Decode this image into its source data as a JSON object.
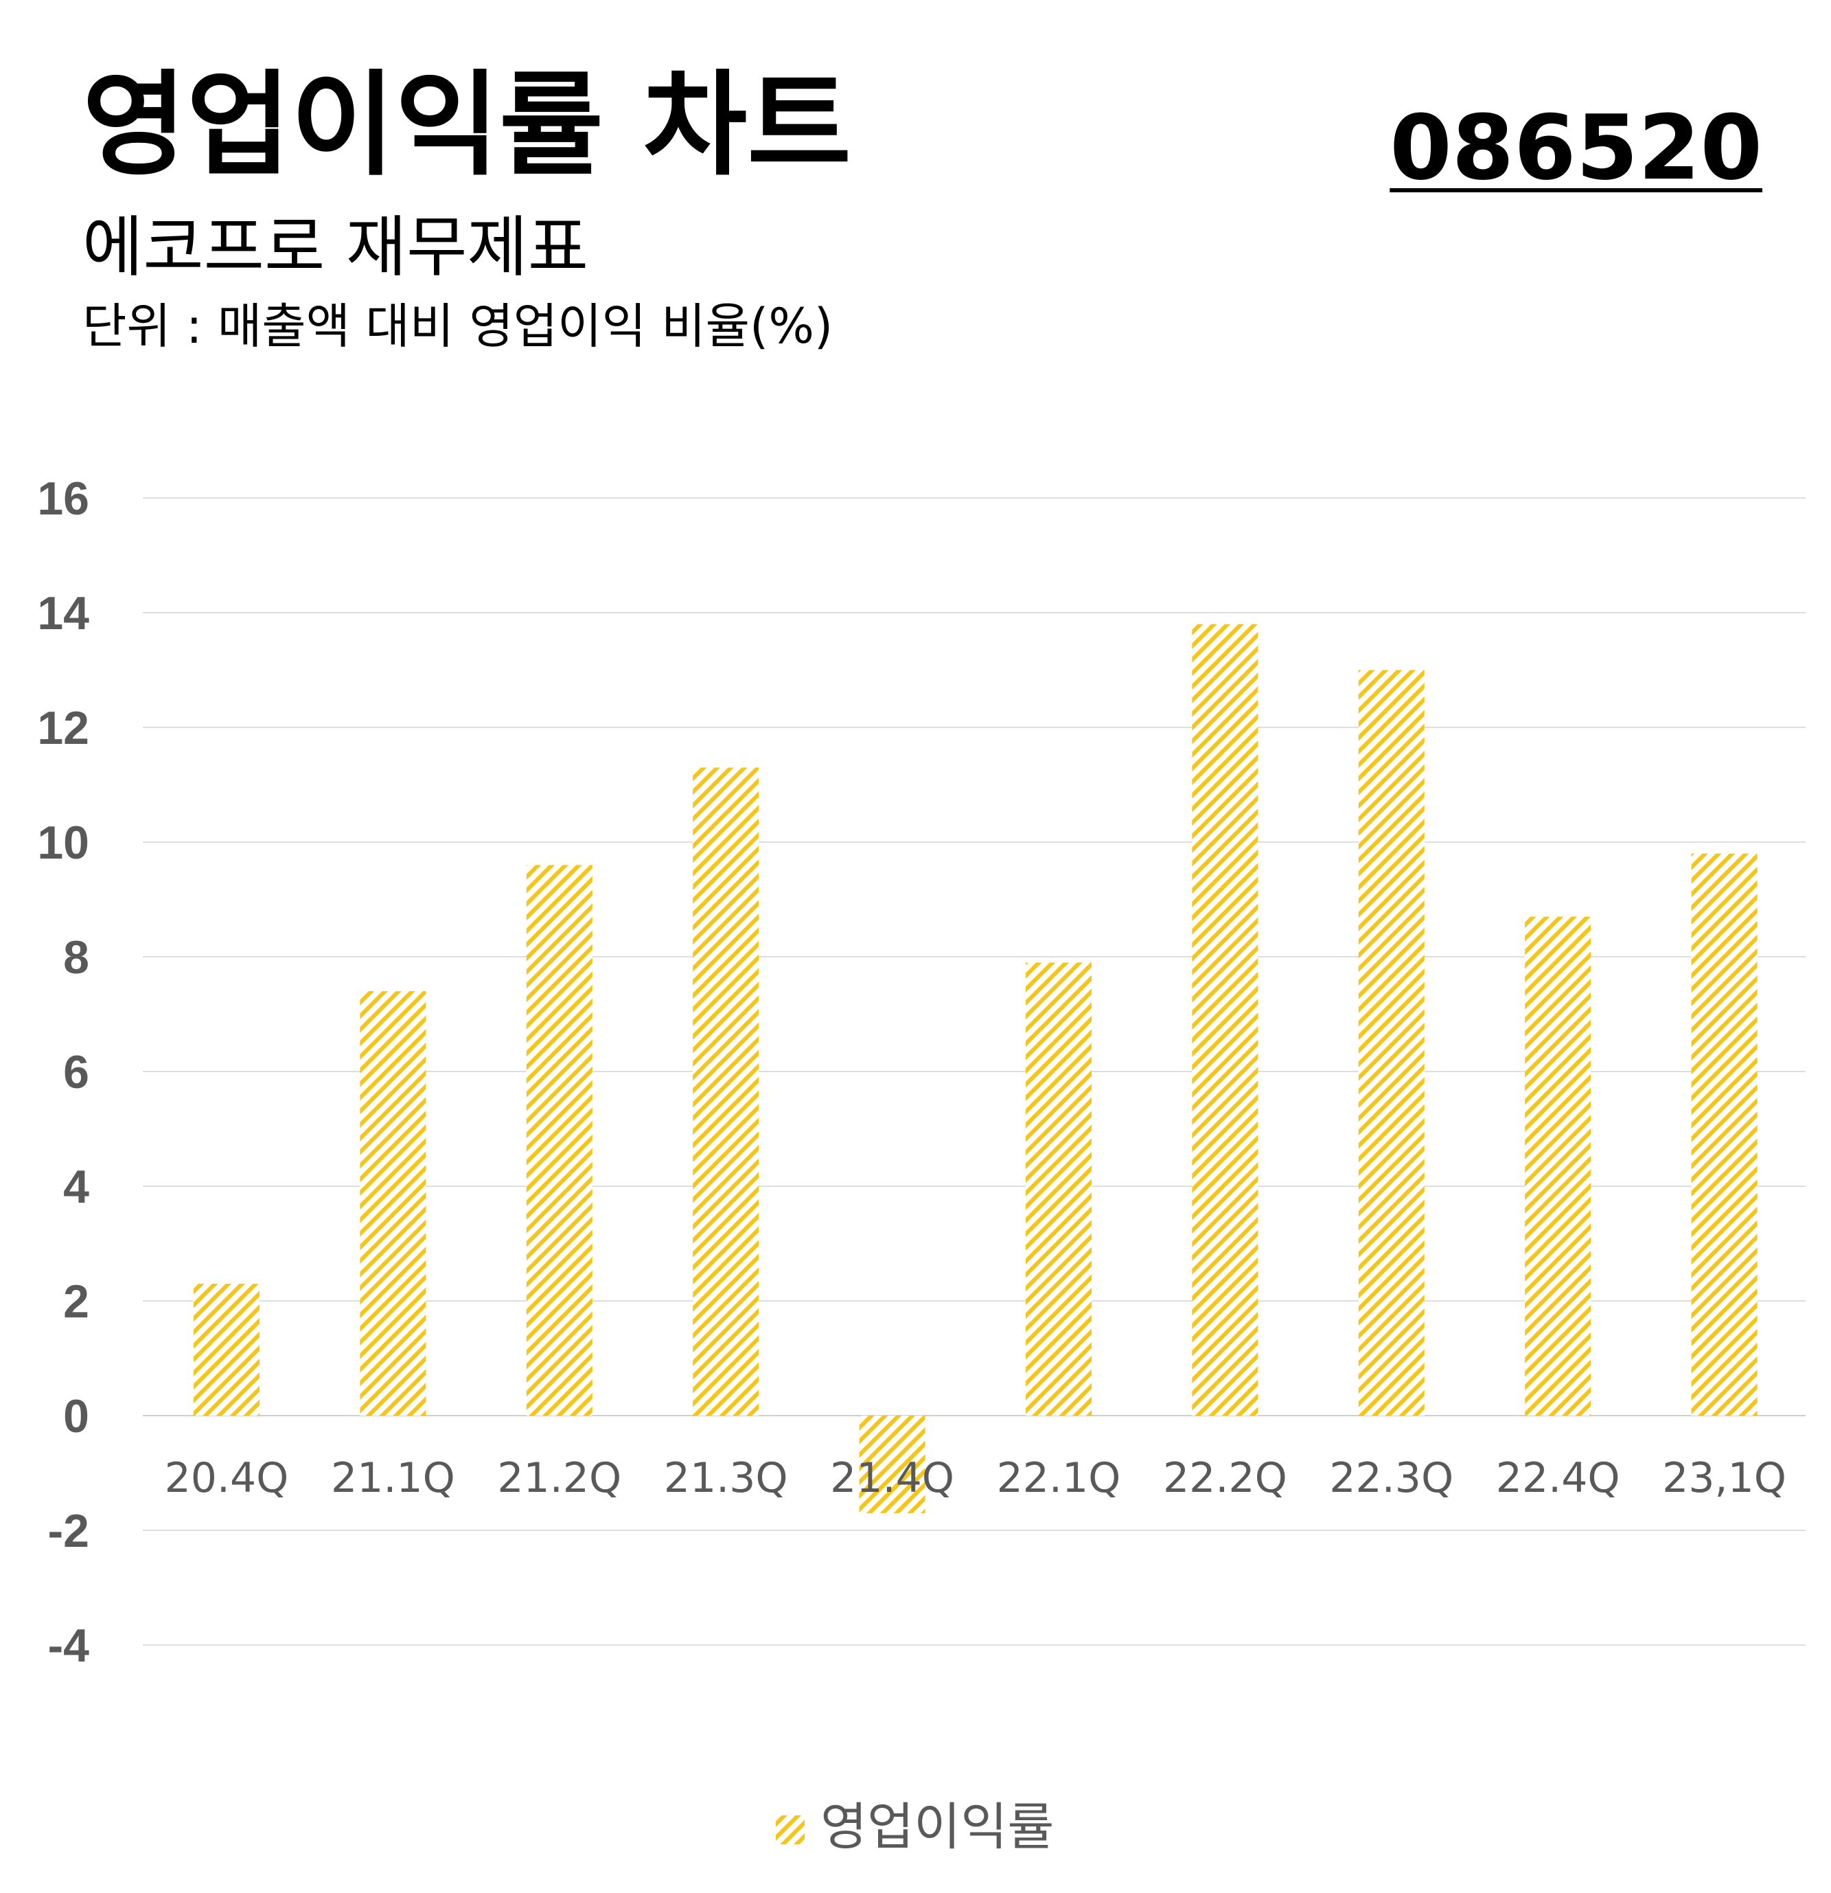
{
  "header": {
    "title": "영업이익률 차트",
    "subtitle": "에코프로 재무제표",
    "unit": "단위 : 매출액 대비 영업이익 비율(%)",
    "code": "086520"
  },
  "chart_data": {
    "type": "bar",
    "categories": [
      "20.4Q",
      "21.1Q",
      "21.2Q",
      "21.3Q",
      "21.4Q",
      "22.1Q",
      "22.2Q",
      "22.3Q",
      "22.4Q",
      "23,1Q"
    ],
    "series": [
      {
        "name": "영업이익률",
        "values": [
          2.3,
          7.4,
          9.6,
          11.3,
          -1.7,
          7.9,
          13.8,
          13.0,
          8.7,
          9.8
        ],
        "color": "#F5C518"
      }
    ],
    "yticks": [
      16,
      14,
      12,
      10,
      8,
      6,
      4,
      2,
      0,
      -2,
      -4
    ],
    "ylim": [
      -4,
      16
    ],
    "grid": true,
    "legend_position": "bottom-center",
    "fill_pattern": "diagonal-hatch"
  }
}
